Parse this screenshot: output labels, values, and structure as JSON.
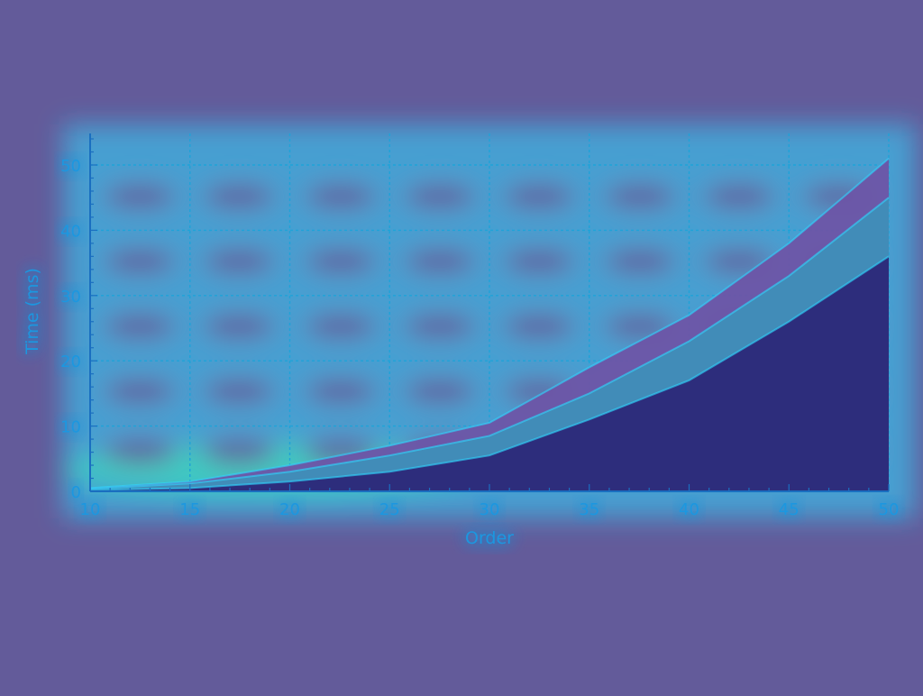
{
  "chart_data": {
    "type": "area",
    "title": "",
    "xlabel": "Order",
    "ylabel": "Time (ms)",
    "xlim": [
      10,
      50
    ],
    "ylim": [
      0,
      50
    ],
    "grid": true,
    "xticks": [
      10,
      15,
      20,
      25,
      30,
      35,
      40,
      45,
      50
    ],
    "yticks": [
      0,
      10,
      20,
      30,
      40,
      50
    ],
    "x": [
      10,
      15,
      20,
      25,
      30,
      35,
      40,
      45,
      50
    ],
    "series": [
      {
        "values": [
          0.5,
          1.5,
          4,
          7,
          10.5,
          19,
          27,
          38,
          51
        ],
        "color": "#6d55a6"
      },
      {
        "values": [
          0.4,
          1.2,
          3,
          5.5,
          8.5,
          15,
          23,
          33,
          45
        ],
        "color": "#3f8fb8"
      },
      {
        "values": [
          0.2,
          0.5,
          1.5,
          3,
          5.5,
          11,
          17,
          26,
          36
        ],
        "color": "#2c2878"
      }
    ]
  },
  "colors": {
    "background": "#635b9a",
    "glow": "#2fd7ff",
    "glow_green": "#35ffb0",
    "axis_text": "#1b97e0",
    "grid": "#1fa3d8"
  }
}
